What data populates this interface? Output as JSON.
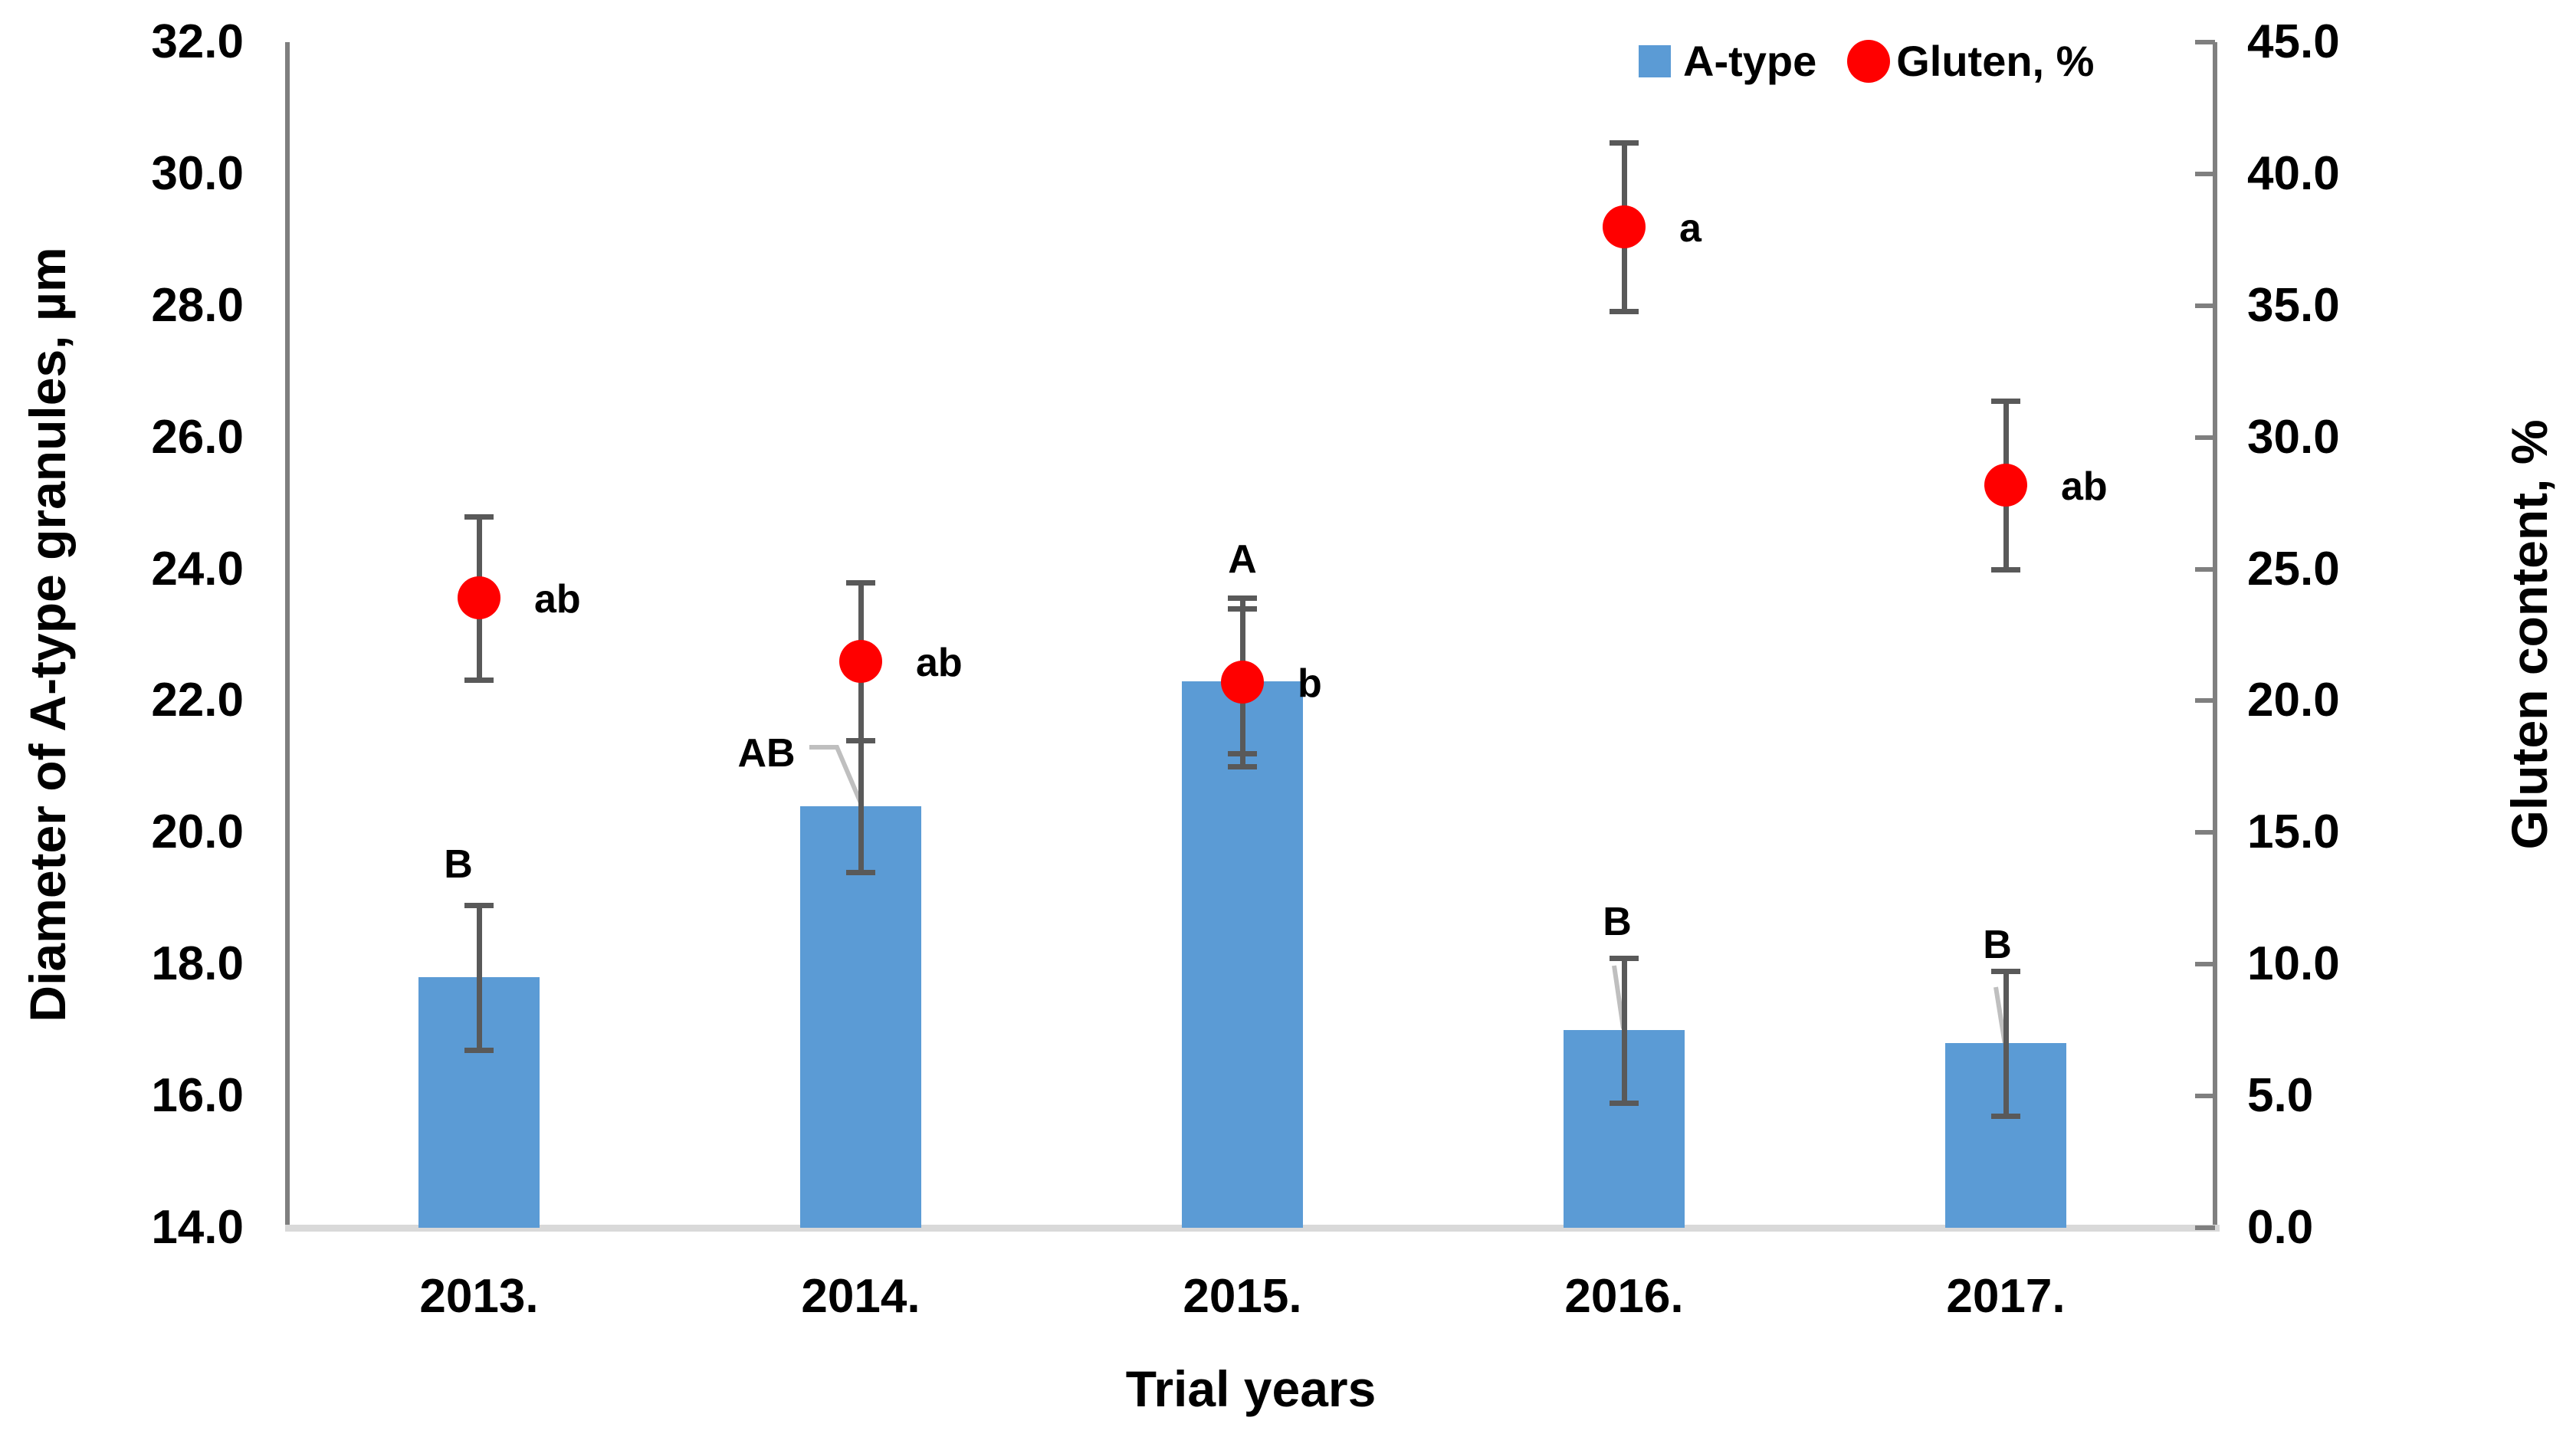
{
  "chart_data": {
    "type": "bar",
    "categories": [
      "2013.",
      "2014.",
      "2015.",
      "2016.",
      "2017."
    ],
    "series": [
      {
        "name": "A-type",
        "type": "bar",
        "axis": "left",
        "color": "#5b9bd5",
        "values": [
          17.8,
          20.4,
          22.3,
          17.0,
          16.8
        ],
        "error": [
          1.1,
          1.0,
          1.1,
          1.1,
          1.1
        ],
        "sig_labels": [
          "B",
          "AB",
          "A",
          "B",
          "B"
        ]
      },
      {
        "name": "Gluten, %",
        "type": "scatter",
        "axis": "right",
        "color": "#ff0000",
        "values": [
          23.9,
          21.5,
          20.7,
          38.0,
          28.2
        ],
        "error": [
          3.1,
          3.0,
          3.2,
          3.2,
          3.2
        ],
        "sig_labels": [
          "ab",
          "ab",
          "b",
          "a",
          "ab"
        ]
      }
    ],
    "xlabel": "Trial years",
    "ylabel_left": "Diameter of A-type granules, µm",
    "ylabel_right": "Gluten content, %",
    "left_axis": {
      "min": 14.0,
      "max": 32.0,
      "step": 2.0,
      "tick_labels": [
        "32.0",
        "30.0",
        "28.0",
        "26.0",
        "24.0",
        "22.0",
        "20.0",
        "18.0",
        "16.0",
        "14.0"
      ]
    },
    "right_axis": {
      "min": 0.0,
      "max": 45.0,
      "step": 5.0,
      "tick_labels": [
        "45.0",
        "40.0",
        "35.0",
        "30.0",
        "25.0",
        "20.0",
        "15.0",
        "10.0",
        "5.0",
        "0.0"
      ]
    },
    "legend": {
      "position": "top",
      "items": [
        "A-type",
        "Gluten, %"
      ]
    },
    "grid": false,
    "error_bar_color": "#595959",
    "leader_line_color": "#bfbfbf"
  }
}
